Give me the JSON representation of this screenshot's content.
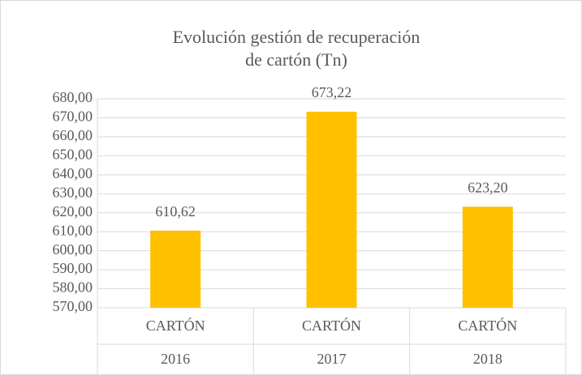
{
  "chart_data": {
    "type": "bar",
    "title_lines": [
      "Evolución gestión de  recuperación",
      "de cartón (Tn)"
    ],
    "categories": [
      "CARTÓN",
      "CARTÓN",
      "CARTÓN"
    ],
    "years": [
      "2016",
      "2017",
      "2018"
    ],
    "values": [
      610.62,
      673.22,
      623.2
    ],
    "value_labels": [
      "610,62",
      "673,22",
      "623,20"
    ],
    "color": "#ffc000",
    "ylim": [
      570,
      680
    ],
    "yticks": [
      {
        "value": 570,
        "label": "570,00"
      },
      {
        "value": 580,
        "label": "580,00"
      },
      {
        "value": 590,
        "label": "590,00"
      },
      {
        "value": 600,
        "label": "600,00"
      },
      {
        "value": 610,
        "label": "610,00"
      },
      {
        "value": 620,
        "label": "620,00"
      },
      {
        "value": 630,
        "label": "630,00"
      },
      {
        "value": 640,
        "label": "640,00"
      },
      {
        "value": 650,
        "label": "650,00"
      },
      {
        "value": 660,
        "label": "660,00"
      },
      {
        "value": 670,
        "label": "670,00"
      },
      {
        "value": 680,
        "label": "680,00"
      }
    ],
    "grid": true
  }
}
